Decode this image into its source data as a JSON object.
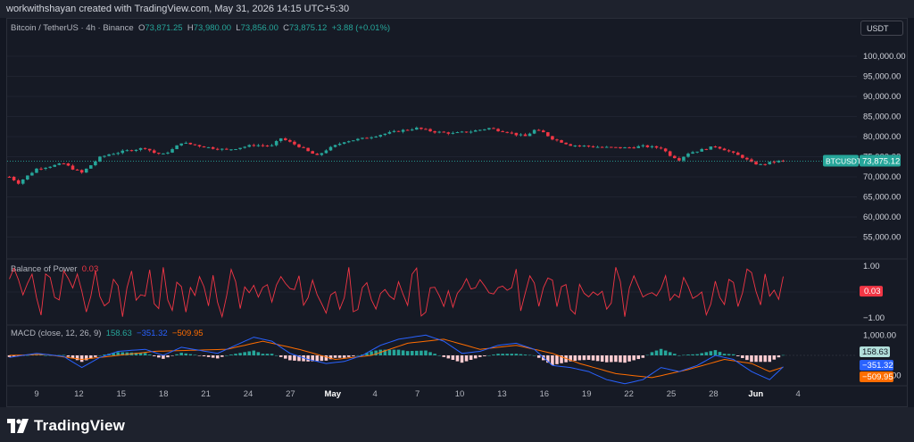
{
  "header": {
    "caption": "workwithshayan created with TradingView.com, May 31, 2026 14:15 UTC+5:30"
  },
  "footer": {
    "logo_text": "TradingView"
  },
  "currency_button": "USDT",
  "legend": {
    "symbol": "Bitcoin / TetherUS · 4h · Binance",
    "o_label": "O",
    "o_value": "73,871.25",
    "h_label": "H",
    "h_value": "73,980.00",
    "l_label": "L",
    "l_value": "73,856.00",
    "c_label": "C",
    "c_value": "73,875.12",
    "change": "+3.88 (+0.01%)"
  },
  "bop_legend": {
    "name": "Balance of Power",
    "value": "0.03"
  },
  "macd_legend": {
    "name": "MACD",
    "params": "close, 12, 26, 9",
    "hist": "158.63",
    "macd": "−351.32",
    "signal": "−509.95"
  },
  "colors": {
    "up": "#26a69a",
    "down": "#f23645",
    "bop": "#f23645",
    "macd_line": "#2962ff",
    "signal_line": "#ff6d00",
    "hist_up": "#26a69a",
    "hist_down": "#ffcdd2"
  },
  "chart_data": [
    {
      "type": "candlestick",
      "symbol": "BTCUSDT",
      "ylim": [
        50000,
        104000
      ],
      "y_ticks": [
        55000,
        60000,
        65000,
        70000,
        75000,
        80000,
        85000,
        90000,
        95000,
        100000
      ],
      "y_tick_labels": [
        "55,000.00",
        "60,000.00",
        "65,000.00",
        "70,000.00",
        "75,000.00",
        "80,000.00",
        "85,000.00",
        "90,000.00",
        "95,000.00",
        "100,000.00"
      ],
      "last_price_label": "73,875.12",
      "last_price": 73875.12,
      "symbol_label": "BTCUSDT",
      "close_path": [
        [
          0,
          70000
        ],
        [
          1,
          68500
        ],
        [
          3,
          72000
        ],
        [
          6,
          73300
        ],
        [
          7,
          72000
        ],
        [
          8,
          71000
        ],
        [
          10,
          74800
        ],
        [
          11,
          75600
        ],
        [
          13,
          76500
        ],
        [
          15,
          77200
        ],
        [
          16,
          76000
        ],
        [
          17,
          75600
        ],
        [
          18,
          76800
        ],
        [
          19,
          78500
        ],
        [
          22,
          77300
        ],
        [
          24,
          76700
        ],
        [
          27,
          77900
        ],
        [
          29,
          77700
        ],
        [
          30,
          79600
        ],
        [
          32,
          77600
        ],
        [
          33,
          76300
        ],
        [
          34,
          75200
        ],
        [
          35,
          76700
        ],
        [
          37,
          78800
        ],
        [
          39,
          79500
        ],
        [
          41,
          80500
        ],
        [
          43,
          81400
        ],
        [
          45,
          82100
        ],
        [
          47,
          81200
        ],
        [
          49,
          80800
        ],
        [
          51,
          81300
        ],
        [
          53,
          82100
        ],
        [
          54,
          81600
        ],
        [
          55,
          81200
        ],
        [
          56,
          80500
        ],
        [
          57,
          80100
        ],
        [
          58,
          81600
        ],
        [
          59,
          81000
        ],
        [
          60,
          79500
        ],
        [
          62,
          77900
        ],
        [
          64,
          77600
        ],
        [
          66,
          77300
        ],
        [
          68,
          77200
        ],
        [
          70,
          77600
        ],
        [
          72,
          77200
        ],
        [
          73,
          75400
        ],
        [
          74,
          74300
        ],
        [
          75,
          75900
        ],
        [
          77,
          77000
        ],
        [
          78,
          77600
        ],
        [
          79,
          76800
        ],
        [
          80,
          75800
        ],
        [
          81,
          74900
        ],
        [
          82,
          73500
        ],
        [
          83,
          73000
        ],
        [
          84,
          73500
        ],
        [
          85,
          73900
        ],
        [
          86,
          73875
        ]
      ]
    },
    {
      "type": "line",
      "name": "Balance of Power",
      "ylim": [
        -1.2,
        1.2
      ],
      "y_ticks": [
        1.0,
        -1.0
      ],
      "y_tick_labels": [
        "1.00",
        "−1.00"
      ],
      "last_value": 0.03,
      "last_value_label": "0.03"
    },
    {
      "type": "line",
      "name": "MACD",
      "y_ticks": [
        1000,
        -1000
      ],
      "y_tick_labels": [
        "1,000.00",
        "−1,000.00"
      ],
      "ylim": [
        -1500,
        1500
      ],
      "hist_last_label": "158.63",
      "macd_last_label": "−351.32",
      "signal_last_label": "−509.95",
      "macd_path": [
        [
          0,
          -100
        ],
        [
          3,
          100
        ],
        [
          6,
          -50
        ],
        [
          8,
          -600
        ],
        [
          10,
          -100
        ],
        [
          12,
          200
        ],
        [
          15,
          300
        ],
        [
          17,
          0
        ],
        [
          19,
          400
        ],
        [
          21,
          250
        ],
        [
          23,
          100
        ],
        [
          25,
          500
        ],
        [
          27,
          900
        ],
        [
          29,
          700
        ],
        [
          31,
          100
        ],
        [
          33,
          -200
        ],
        [
          35,
          -400
        ],
        [
          37,
          -300
        ],
        [
          39,
          0
        ],
        [
          41,
          500
        ],
        [
          43,
          800
        ],
        [
          46,
          1000
        ],
        [
          48,
          700
        ],
        [
          50,
          100
        ],
        [
          52,
          200
        ],
        [
          54,
          500
        ],
        [
          56,
          600
        ],
        [
          58,
          300
        ],
        [
          60,
          -500
        ],
        [
          62,
          -600
        ],
        [
          64,
          -800
        ],
        [
          66,
          -1200
        ],
        [
          68,
          -1400
        ],
        [
          70,
          -1200
        ],
        [
          72,
          -600
        ],
        [
          74,
          -800
        ],
        [
          76,
          -500
        ],
        [
          78,
          0
        ],
        [
          80,
          -200
        ],
        [
          82,
          -800
        ],
        [
          84,
          -1200
        ],
        [
          86,
          -351
        ]
      ],
      "signal_path": [
        [
          0,
          0
        ],
        [
          4,
          50
        ],
        [
          8,
          -200
        ],
        [
          12,
          0
        ],
        [
          16,
          200
        ],
        [
          20,
          250
        ],
        [
          24,
          300
        ],
        [
          28,
          700
        ],
        [
          32,
          300
        ],
        [
          36,
          -200
        ],
        [
          40,
          0
        ],
        [
          44,
          600
        ],
        [
          48,
          800
        ],
        [
          52,
          300
        ],
        [
          56,
          500
        ],
        [
          60,
          100
        ],
        [
          63,
          -400
        ],
        [
          67,
          -900
        ],
        [
          71,
          -1100
        ],
        [
          75,
          -700
        ],
        [
          79,
          -200
        ],
        [
          82,
          -400
        ],
        [
          84,
          -800
        ],
        [
          86,
          -510
        ]
      ]
    },
    {
      "type": "x_axis",
      "labels": [
        "9",
        "12",
        "15",
        "18",
        "21",
        "24",
        "27",
        "May",
        "4",
        "7",
        "10",
        "13",
        "16",
        "19",
        "22",
        "25",
        "28",
        "Jun",
        "4"
      ],
      "label_index": [
        3,
        9,
        15,
        21,
        27,
        33,
        39,
        45,
        51,
        57,
        63,
        69,
        75,
        81,
        87,
        93,
        99,
        105,
        111
      ]
    }
  ]
}
